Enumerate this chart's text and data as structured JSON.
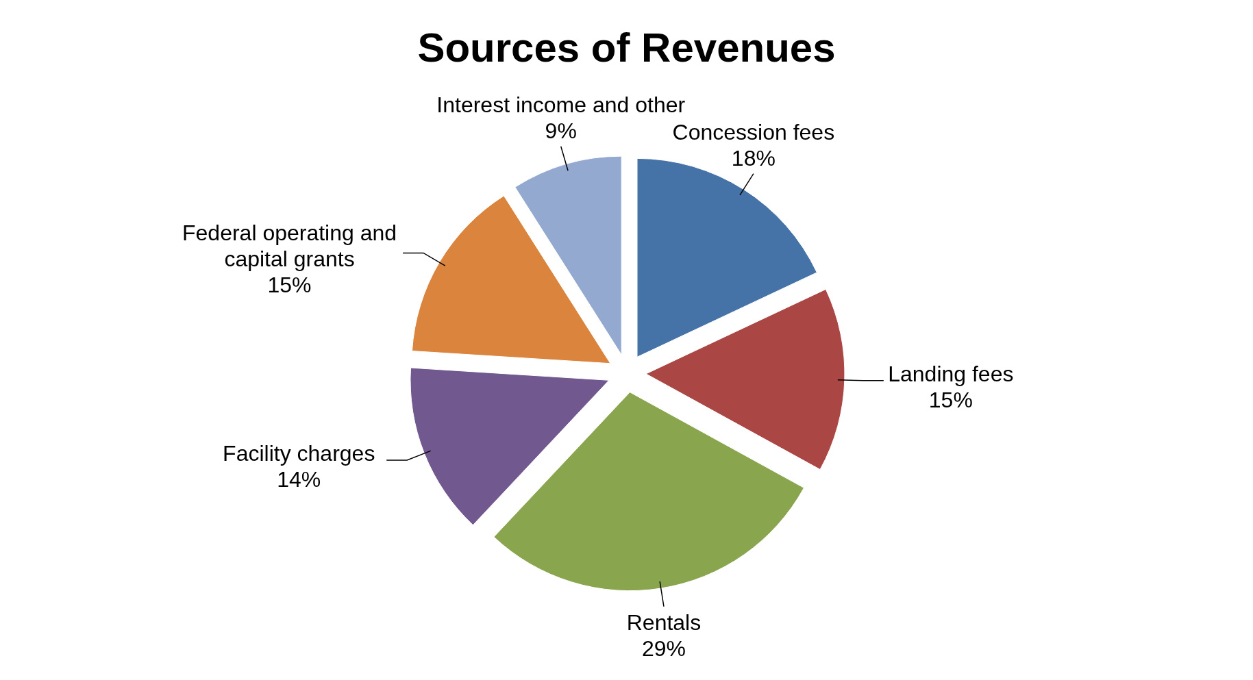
{
  "chart_data": {
    "type": "pie",
    "title": "Sources of Revenues",
    "categories": [
      "Concession fees",
      "Landing fees",
      "Rentals",
      "Facility charges",
      "Federal operating and capital grants",
      "Interest income and other"
    ],
    "values": [
      18,
      15,
      29,
      14,
      15,
      9
    ],
    "value_labels": [
      "18%",
      "15%",
      "29%",
      "14%",
      "15%",
      "9%"
    ],
    "colors": [
      "#4572a7",
      "#aa4643",
      "#89a54e",
      "#71588f",
      "#db843d",
      "#93a9cf"
    ]
  }
}
